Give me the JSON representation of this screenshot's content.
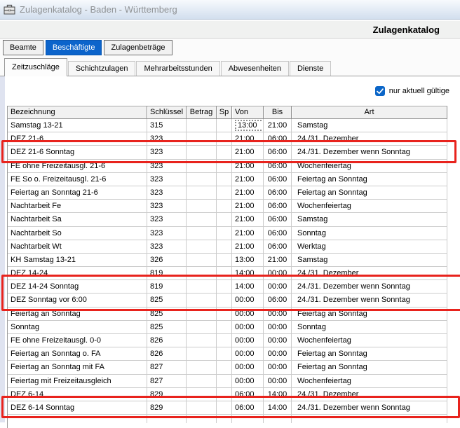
{
  "window": {
    "title": "Zulagenkatalog - Baden - Württemberg"
  },
  "header": {
    "title": "Zulagenkatalog"
  },
  "view_buttons": [
    {
      "label": "Beamte",
      "active": false
    },
    {
      "label": "Beschäftigte",
      "active": true
    },
    {
      "label": "Zulagenbeträge",
      "active": false
    }
  ],
  "tabs": [
    {
      "label": "Zeitzuschläge",
      "active": true
    },
    {
      "label": "Schichtzulagen",
      "active": false
    },
    {
      "label": "Mehrarbeitsstunden",
      "active": false
    },
    {
      "label": "Abwesenheiten",
      "active": false
    },
    {
      "label": "Dienste",
      "active": false
    }
  ],
  "filter": {
    "checkbox_label": "nur aktuell gültige",
    "checked": true
  },
  "table": {
    "columns": [
      "Bezeichnung",
      "Schlüssel",
      "Betrag",
      "Sp",
      "Von",
      "Bis",
      "Art"
    ],
    "rows": [
      {
        "bezeichnung": "Samstag 13-21",
        "schluessel": "315",
        "betrag": "",
        "sp": "",
        "von": "13:00",
        "bis": "21:00",
        "art": "Samstag",
        "focused_cell": "von"
      },
      {
        "bezeichnung": "DEZ 21-6",
        "schluessel": "323",
        "betrag": "",
        "sp": "",
        "von": "21:00",
        "bis": "06:00",
        "art": "24./31. Dezember"
      },
      {
        "bezeichnung": "DEZ 21-6 Sonntag",
        "schluessel": "323",
        "betrag": "",
        "sp": "",
        "von": "21:00",
        "bis": "06:00",
        "art": "24./31. Dezember wenn Sonntag"
      },
      {
        "bezeichnung": "FE ohne Freizeitausgl. 21-6",
        "schluessel": "323",
        "betrag": "",
        "sp": "",
        "von": "21:00",
        "bis": "06:00",
        "art": "Wochenfeiertag"
      },
      {
        "bezeichnung": "FE So o. Freizeitausgl. 21-6",
        "schluessel": "323",
        "betrag": "",
        "sp": "",
        "von": "21:00",
        "bis": "06:00",
        "art": "Feiertag an Sonntag"
      },
      {
        "bezeichnung": "Feiertag an Sonntag 21-6",
        "schluessel": "323",
        "betrag": "",
        "sp": "",
        "von": "21:00",
        "bis": "06:00",
        "art": "Feiertag an Sonntag"
      },
      {
        "bezeichnung": "Nachtarbeit Fe",
        "schluessel": "323",
        "betrag": "",
        "sp": "",
        "von": "21:00",
        "bis": "06:00",
        "art": "Wochenfeiertag"
      },
      {
        "bezeichnung": "Nachtarbeit Sa",
        "schluessel": "323",
        "betrag": "",
        "sp": "",
        "von": "21:00",
        "bis": "06:00",
        "art": "Samstag"
      },
      {
        "bezeichnung": "Nachtarbeit So",
        "schluessel": "323",
        "betrag": "",
        "sp": "",
        "von": "21:00",
        "bis": "06:00",
        "art": "Sonntag"
      },
      {
        "bezeichnung": "Nachtarbeit Wt",
        "schluessel": "323",
        "betrag": "",
        "sp": "",
        "von": "21:00",
        "bis": "06:00",
        "art": "Werktag"
      },
      {
        "bezeichnung": "KH Samstag 13-21",
        "schluessel": "326",
        "betrag": "",
        "sp": "",
        "von": "13:00",
        "bis": "21:00",
        "art": "Samstag"
      },
      {
        "bezeichnung": "DEZ 14-24",
        "schluessel": "819",
        "betrag": "",
        "sp": "",
        "von": "14:00",
        "bis": "00:00",
        "art": "24./31. Dezember"
      },
      {
        "bezeichnung": "DEZ 14-24 Sonntag",
        "schluessel": "819",
        "betrag": "",
        "sp": "",
        "von": "14:00",
        "bis": "00:00",
        "art": "24./31. Dezember wenn Sonntag"
      },
      {
        "bezeichnung": "DEZ Sonntag vor 6:00",
        "schluessel": "825",
        "betrag": "",
        "sp": "",
        "von": "00:00",
        "bis": "06:00",
        "art": "24./31. Dezember wenn Sonntag"
      },
      {
        "bezeichnung": "Feiertag an Sonntag",
        "schluessel": "825",
        "betrag": "",
        "sp": "",
        "von": "00:00",
        "bis": "00:00",
        "art": "Feiertag an Sonntag"
      },
      {
        "bezeichnung": "Sonntag",
        "schluessel": "825",
        "betrag": "",
        "sp": "",
        "von": "00:00",
        "bis": "00:00",
        "art": "Sonntag"
      },
      {
        "bezeichnung": "FE ohne Freizeitausgl. 0-0",
        "schluessel": "826",
        "betrag": "",
        "sp": "",
        "von": "00:00",
        "bis": "00:00",
        "art": "Wochenfeiertag"
      },
      {
        "bezeichnung": "Feiertag an Sonntag o. FA",
        "schluessel": "826",
        "betrag": "",
        "sp": "",
        "von": "00:00",
        "bis": "00:00",
        "art": "Feiertag an Sonntag"
      },
      {
        "bezeichnung": "Feiertag an Sonntag mit FA",
        "schluessel": "827",
        "betrag": "",
        "sp": "",
        "von": "00:00",
        "bis": "00:00",
        "art": "Feiertag an Sonntag"
      },
      {
        "bezeichnung": "Feiertag mit Freizeitausgleich",
        "schluessel": "827",
        "betrag": "",
        "sp": "",
        "von": "00:00",
        "bis": "00:00",
        "art": "Wochenfeiertag"
      },
      {
        "bezeichnung": "DEZ 6-14",
        "schluessel": "829",
        "betrag": "",
        "sp": "",
        "von": "06:00",
        "bis": "14:00",
        "art": "24./31. Dezember"
      },
      {
        "bezeichnung": "DEZ 6-14 Sonntag",
        "schluessel": "829",
        "betrag": "",
        "sp": "",
        "von": "06:00",
        "bis": "14:00",
        "art": "24./31. Dezember wenn Sonntag"
      }
    ]
  },
  "annotations": {
    "boxes": [
      {
        "rows": [
          3
        ]
      },
      {
        "rows": [
          13,
          14
        ]
      },
      {
        "rows": [
          22
        ]
      }
    ]
  },
  "colors": {
    "accent_blue": "#0c64cb",
    "checkbox_blue": "#0b66c8",
    "highlight_red": "#e8231d"
  }
}
